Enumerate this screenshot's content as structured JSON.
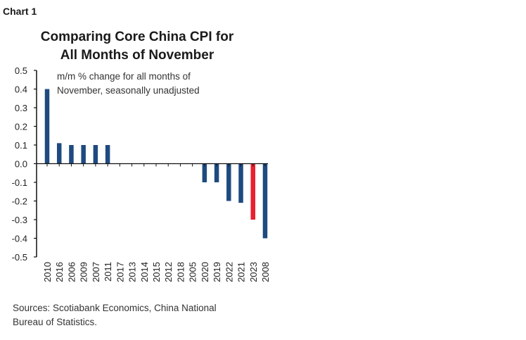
{
  "header": {
    "chart_label": "Chart 1"
  },
  "chart_data": {
    "type": "bar",
    "title": "Comparing Core China CPI for All Months of November",
    "title_lines": [
      "Comparing Core China CPI for",
      "All Months of November"
    ],
    "subtitle_lines": [
      "m/m % change for all months of",
      "November, seasonally unadjusted"
    ],
    "categories": [
      "2010",
      "2016",
      "2006",
      "2009",
      "2007",
      "2011",
      "2017",
      "2013",
      "2014",
      "2015",
      "2012",
      "2018",
      "2005",
      "2020",
      "2019",
      "2022",
      "2021",
      "2023",
      "2008"
    ],
    "values": [
      0.4,
      0.11,
      0.1,
      0.1,
      0.1,
      0.1,
      0,
      0,
      0,
      0,
      0,
      0,
      0,
      -0.1,
      -0.1,
      -0.2,
      -0.21,
      -0.3,
      -0.4
    ],
    "highlight": "2023",
    "colors": {
      "bar": "#1f4a80",
      "highlight": "#e8202f"
    },
    "ylim": [
      -0.5,
      0.5
    ],
    "yticks": [
      "0.5",
      "0.4",
      "0.3",
      "0.2",
      "0.1",
      "0.0",
      "-0.1",
      "-0.2",
      "-0.3",
      "-0.4",
      "-0.5"
    ],
    "xlabel": "",
    "ylabel": "",
    "grid": false,
    "legend": "none"
  },
  "footer": {
    "source_lines": [
      "Sources: Scotiabank Economics, China National",
      "Bureau of Statistics."
    ]
  }
}
